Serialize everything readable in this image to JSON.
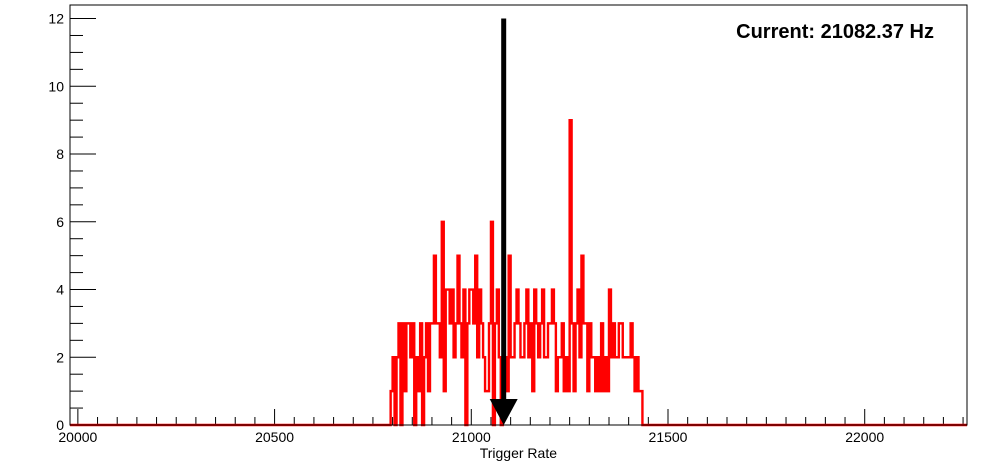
{
  "chart_data": {
    "type": "line",
    "style": "step-histogram",
    "title": "",
    "xlabel": "Trigger Rate",
    "ylabel": "",
    "xlim": [
      19980,
      22260
    ],
    "ylim": [
      0,
      12.4
    ],
    "x_ticks": [
      20000,
      20500,
      21000,
      21500,
      22000
    ],
    "y_ticks": [
      0,
      2,
      4,
      6,
      8,
      10,
      12
    ],
    "bin_width": 5,
    "series": [
      {
        "color": "#ff0000",
        "x": [
          20790,
          20795,
          20800,
          20805,
          20810,
          20815,
          20820,
          20825,
          20830,
          20835,
          20840,
          20845,
          20850,
          20855,
          20860,
          20865,
          20870,
          20875,
          20880,
          20885,
          20890,
          20895,
          20900,
          20905,
          20910,
          20915,
          20920,
          20925,
          20930,
          20935,
          20940,
          20945,
          20950,
          20955,
          20960,
          20965,
          20970,
          20975,
          20980,
          20985,
          20990,
          20995,
          21000,
          21005,
          21010,
          21015,
          21020,
          21025,
          21030,
          21035,
          21040,
          21045,
          21050,
          21055,
          21060,
          21065,
          21070,
          21075,
          21080,
          21085,
          21090,
          21095,
          21100,
          21105,
          21110,
          21115,
          21120,
          21125,
          21130,
          21135,
          21140,
          21145,
          21150,
          21155,
          21160,
          21165,
          21170,
          21175,
          21180,
          21185,
          21190,
          21195,
          21200,
          21205,
          21210,
          21215,
          21220,
          21225,
          21230,
          21235,
          21240,
          21245,
          21250,
          21255,
          21260,
          21265,
          21270,
          21275,
          21280,
          21285,
          21290,
          21295,
          21300,
          21305,
          21310,
          21315,
          21320,
          21325,
          21330,
          21335,
          21340,
          21345,
          21350,
          21355,
          21360,
          21365,
          21370,
          21375,
          21380,
          21385,
          21390,
          21395,
          21400,
          21405,
          21410,
          21415,
          21420,
          21425,
          21430,
          21435
        ],
        "values": [
          0,
          1,
          2,
          0,
          2,
          3,
          0,
          3,
          1,
          3,
          3,
          2,
          3,
          0,
          2,
          1,
          3,
          0,
          2,
          3,
          1,
          3,
          3,
          5,
          3,
          3,
          2,
          6,
          1,
          4,
          4,
          3,
          4,
          2,
          3,
          5,
          3,
          2,
          4,
          0,
          3,
          4,
          4,
          3,
          5,
          2,
          4,
          3,
          2,
          1,
          1,
          3,
          6,
          0,
          3,
          4,
          2,
          0,
          3,
          2,
          1,
          5,
          2,
          2,
          3,
          4,
          3,
          2,
          2,
          3,
          4,
          2,
          3,
          1,
          4,
          3,
          2,
          3,
          4,
          2,
          2,
          3,
          3,
          4,
          3,
          1,
          2,
          2,
          3,
          1,
          2,
          1,
          9,
          3,
          1,
          3,
          4,
          2,
          5,
          3,
          3,
          1,
          3,
          2,
          2,
          1,
          2,
          1,
          3,
          1,
          2,
          1,
          4,
          2,
          3,
          2,
          2,
          3,
          3,
          2,
          2,
          2,
          2,
          3,
          2,
          1,
          2,
          1,
          1,
          0
        ]
      }
    ],
    "marker": {
      "type": "arrow",
      "x": 21082.37,
      "y_top": 12,
      "color": "#000000"
    },
    "annotation": "Current: 21082.37 Hz",
    "grid": false,
    "legend": "none"
  }
}
